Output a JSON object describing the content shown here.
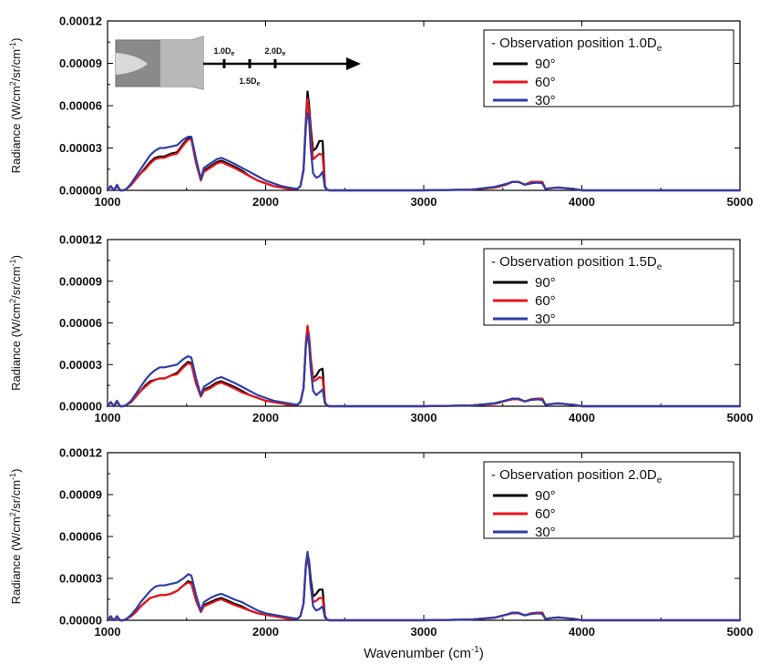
{
  "chart_data": {
    "type": "line",
    "x_label": "Wavenumber",
    "x_unit": "(cm",
    "x_unit_sup": "-1",
    "x_unit_close": ")",
    "xlim": [
      1000,
      5000
    ],
    "x_ticks": [
      "1000",
      "2000",
      "3000",
      "4000",
      "5000"
    ],
    "y_label_parts": [
      "Radiance (W/cm",
      "2",
      "/sr/cm",
      "-1",
      ")"
    ],
    "ylim": [
      0,
      0.00012
    ],
    "y_ticks": [
      "0.00000",
      "0.00003",
      "0.00006",
      "0.00009",
      "0.00012"
    ],
    "legend_labels": [
      "90°",
      "60°",
      "30°"
    ],
    "series_colors": {
      "90°": "#000000",
      "60°": "#e8141c",
      "30°": "#2f3ea8"
    },
    "x": [
      1000,
      1020,
      1040,
      1060,
      1080,
      1100,
      1120,
      1150,
      1180,
      1210,
      1240,
      1270,
      1300,
      1330,
      1360,
      1400,
      1440,
      1480,
      1510,
      1530,
      1560,
      1590,
      1610,
      1650,
      1690,
      1720,
      1760,
      1800,
      1850,
      1900,
      1950,
      2000,
      2050,
      2100,
      2150,
      2200,
      2220,
      2240,
      2255,
      2265,
      2275,
      2285,
      2300,
      2320,
      2340,
      2360,
      2375,
      2385,
      2400,
      2500,
      3000,
      3300,
      3450,
      3520,
      3560,
      3600,
      3640,
      3680,
      3720,
      3750,
      3770,
      3800,
      3850,
      3900,
      3950,
      4000,
      4100,
      5000
    ],
    "insets": [
      {
        "legend_title": "- Observation position 1.0D",
        "legend_sub": "e",
        "nozzle_labels": [
          {
            "text": "1.0D",
            "sub": "e"
          },
          {
            "text": "1.5D",
            "sub": "e"
          },
          {
            "text": "2.0D",
            "sub": "e"
          }
        ],
        "series": [
          {
            "name": "90°",
            "values": [
              0,
              3e-06,
              0,
              3e-06,
              0,
              0,
              1e-06,
              4e-06,
              8e-06,
              1.2e-05,
              1.6e-05,
              2e-05,
              2.3e-05,
              2.4e-05,
              2.4e-05,
              2.6e-05,
              2.7e-05,
              3.3e-05,
              3.7e-05,
              3.7e-05,
              2e-05,
              8e-06,
              1.4e-05,
              1.7e-05,
              2e-05,
              2.1e-05,
              1.9e-05,
              1.7e-05,
              1.4e-05,
              1e-05,
              7e-06,
              5e-06,
              3e-06,
              2e-06,
              1e-06,
              1e-06,
              3e-06,
              1.5e-05,
              5e-05,
              7e-05,
              6e-05,
              4.5e-05,
              2.8e-05,
              3e-05,
              3.5e-05,
              3.5e-05,
              3e-06,
              1e-06,
              0,
              0,
              0,
              5e-07,
              2e-06,
              4e-06,
              6e-06,
              6e-06,
              4e-06,
              6e-06,
              6e-06,
              6e-06,
              1e-06,
              1.5e-06,
              2e-06,
              1.5e-06,
              1e-06,
              0,
              0,
              0
            ]
          },
          {
            "name": "60°",
            "values": [
              0,
              3e-06,
              0,
              3e-06,
              0,
              0,
              1e-06,
              4e-06,
              8e-06,
              1.2e-05,
              1.5e-05,
              1.9e-05,
              2.2e-05,
              2.3e-05,
              2.3e-05,
              2.5e-05,
              2.6e-05,
              3.2e-05,
              3.6e-05,
              3.6e-05,
              1.9e-05,
              7e-06,
              1.3e-05,
              1.6e-05,
              1.9e-05,
              2e-05,
              1.8e-05,
              1.6e-05,
              1.3e-05,
              1e-05,
              7e-06,
              5e-06,
              3e-06,
              2e-06,
              1e-06,
              1e-06,
              3e-06,
              1.4e-05,
              4.8e-05,
              6.5e-05,
              5.5e-05,
              4e-05,
              2.2e-05,
              2.4e-05,
              2.6e-05,
              2.5e-05,
              2e-06,
              1e-06,
              0,
              0,
              0,
              5e-07,
              2e-06,
              4e-06,
              6e-06,
              6e-06,
              4e-06,
              6e-06,
              6e-06,
              6e-06,
              1e-06,
              1.5e-06,
              2e-06,
              1.5e-06,
              1e-06,
              0,
              0,
              0
            ]
          },
          {
            "name": "30°",
            "values": [
              0,
              3e-06,
              0,
              4e-06,
              0,
              0,
              1e-06,
              5e-06,
              1e-05,
              1.5e-05,
              2e-05,
              2.5e-05,
              2.8e-05,
              3e-05,
              3e-05,
              3.1e-05,
              3.2e-05,
              3.6e-05,
              3.8e-05,
              3.8e-05,
              2.2e-05,
              8e-06,
              1.6e-05,
              1.9e-05,
              2.2e-05,
              2.3e-05,
              2.1e-05,
              1.9e-05,
              1.6e-05,
              1.3e-05,
              1e-05,
              7e-06,
              5e-06,
              3e-06,
              2e-06,
              1e-06,
              3e-06,
              1.4e-05,
              4.5e-05,
              5.5e-05,
              5e-05,
              3e-05,
              1.2e-05,
              9e-06,
              1e-05,
              1.3e-05,
              2e-06,
              1e-06,
              0,
              0,
              0,
              5e-07,
              2.5e-06,
              4.5e-06,
              6e-06,
              6e-06,
              4e-06,
              5e-06,
              5.5e-06,
              5e-06,
              1e-06,
              1.5e-06,
              2e-06,
              1.5e-06,
              1e-06,
              0,
              0,
              0
            ]
          }
        ]
      },
      {
        "legend_title": "- Observation position 1.5D",
        "legend_sub": "e",
        "nozzle_labels": [],
        "series": [
          {
            "name": "90°",
            "values": [
              0,
              3e-06,
              0,
              3e-06,
              0,
              0,
              1e-06,
              3e-06,
              7e-06,
              1.1e-05,
              1.5e-05,
              1.8e-05,
              1.9e-05,
              2e-05,
              2e-05,
              2.2e-05,
              2.4e-05,
              2.9e-05,
              3.2e-05,
              3.1e-05,
              1.7e-05,
              7e-06,
              1.2e-05,
              1.4e-05,
              1.7e-05,
              1.8e-05,
              1.6e-05,
              1.4e-05,
              1.1e-05,
              8e-06,
              6e-06,
              4e-06,
              3e-06,
              2e-06,
              1e-06,
              1e-06,
              3e-06,
              1.3e-05,
              4.5e-05,
              5.7e-05,
              5e-05,
              3.5e-05,
              2e-05,
              2.2e-05,
              2.6e-05,
              2.7e-05,
              3e-06,
              1e-06,
              0,
              0,
              0,
              5e-07,
              1.8e-06,
              4e-06,
              5e-06,
              5e-06,
              3.5e-06,
              5e-06,
              5.5e-06,
              5.5e-06,
              1e-06,
              1.5e-06,
              2e-06,
              1.5e-06,
              1e-06,
              0,
              0,
              0
            ]
          },
          {
            "name": "60°",
            "values": [
              0,
              3e-06,
              0,
              3e-06,
              0,
              0,
              1e-06,
              3e-06,
              7e-06,
              1.1e-05,
              1.4e-05,
              1.7e-05,
              1.9e-05,
              2e-05,
              2e-05,
              2.2e-05,
              2.3e-05,
              2.8e-05,
              3.1e-05,
              3e-05,
              1.6e-05,
              7e-06,
              1.1e-05,
              1.3e-05,
              1.6e-05,
              1.7e-05,
              1.5e-05,
              1.3e-05,
              1e-05,
              8e-06,
              6e-06,
              4e-06,
              3e-06,
              2e-06,
              1e-06,
              1e-06,
              3e-06,
              1.3e-05,
              4.6e-05,
              5.8e-05,
              5e-05,
              3.5e-05,
              1.8e-05,
              1.9e-05,
              2.1e-05,
              2e-05,
              2e-06,
              1e-06,
              0,
              0,
              0,
              5e-07,
              1.8e-06,
              4e-06,
              5e-06,
              5e-06,
              3.5e-06,
              5e-06,
              5.5e-06,
              5.5e-06,
              1e-06,
              1.5e-06,
              2e-06,
              1.5e-06,
              1e-06,
              0,
              0,
              0
            ]
          },
          {
            "name": "30°",
            "values": [
              0,
              3e-06,
              0,
              4e-06,
              0,
              0,
              1e-06,
              4e-06,
              9e-06,
              1.4e-05,
              1.9e-05,
              2.3e-05,
              2.6e-05,
              2.8e-05,
              2.8e-05,
              2.9e-05,
              3e-05,
              3.4e-05,
              3.6e-05,
              3.5e-05,
              2e-05,
              8e-06,
              1.4e-05,
              1.7e-05,
              2e-05,
              2.1e-05,
              1.9e-05,
              1.7e-05,
              1.4e-05,
              1.1e-05,
              8e-06,
              6e-06,
              4e-06,
              3e-06,
              2e-06,
              1e-06,
              3e-06,
              1.3e-05,
              4.3e-05,
              5.2e-05,
              4.5e-05,
              2.8e-05,
              1.1e-05,
              8e-06,
              1e-05,
              1.2e-05,
              2e-06,
              1e-06,
              0,
              0,
              0,
              5e-07,
              2.2e-06,
              4.2e-06,
              5.5e-06,
              5.5e-06,
              3.5e-06,
              4.5e-06,
              5e-06,
              4.5e-06,
              1e-06,
              1.5e-06,
              2e-06,
              1.5e-06,
              1e-06,
              0,
              0,
              0
            ]
          }
        ]
      },
      {
        "legend_title": "- Observation position 2.0D",
        "legend_sub": "e",
        "nozzle_labels": [],
        "series": [
          {
            "name": "90°",
            "values": [
              0,
              2e-06,
              0,
              2e-06,
              0,
              0,
              1e-06,
              3e-06,
              6e-06,
              1e-05,
              1.3e-05,
              1.6e-05,
              1.7e-05,
              1.8e-05,
              1.8e-05,
              1.9e-05,
              2.1e-05,
              2.5e-05,
              2.8e-05,
              2.7e-05,
              1.4e-05,
              6e-06,
              1.1e-05,
              1.3e-05,
              1.5e-05,
              1.6e-05,
              1.4e-05,
              1.2e-05,
              1e-05,
              7e-06,
              5e-06,
              4e-06,
              3e-06,
              2e-06,
              1e-06,
              1e-06,
              3e-06,
              1.2e-05,
              4e-05,
              4.8e-05,
              4.2e-05,
              3e-05,
              1.7e-05,
              1.9e-05,
              2.2e-05,
              2.2e-05,
              3e-06,
              1e-06,
              0,
              0,
              0,
              5e-07,
              1.8e-06,
              4e-06,
              5e-06,
              5e-06,
              3.5e-06,
              5e-06,
              5.5e-06,
              5.5e-06,
              1e-06,
              1.5e-06,
              2e-06,
              1.5e-06,
              1e-06,
              0,
              0,
              0
            ]
          },
          {
            "name": "60°",
            "values": [
              0,
              2e-06,
              0,
              2e-06,
              0,
              0,
              1e-06,
              3e-06,
              6e-06,
              1e-05,
              1.3e-05,
              1.6e-05,
              1.7e-05,
              1.8e-05,
              1.8e-05,
              1.9e-05,
              2.1e-05,
              2.5e-05,
              2.7e-05,
              2.6e-05,
              1.4e-05,
              6e-06,
              1e-05,
              1.2e-05,
              1.4e-05,
              1.5e-05,
              1.3e-05,
              1.1e-05,
              9e-06,
              7e-06,
              5e-06,
              4e-06,
              3e-06,
              2e-06,
              1e-06,
              1e-06,
              3e-06,
              1.2e-05,
              3.8e-05,
              4.4e-05,
              3.8e-05,
              2.5e-05,
              1.3e-05,
              1.4e-05,
              1.6e-05,
              1.6e-05,
              2e-06,
              1e-06,
              0,
              0,
              0,
              5e-07,
              1.8e-06,
              4e-06,
              5e-06,
              5e-06,
              3.5e-06,
              5e-06,
              5.5e-06,
              5.5e-06,
              1e-06,
              1.5e-06,
              2e-06,
              1.5e-06,
              1e-06,
              0,
              0,
              0
            ]
          },
          {
            "name": "30°",
            "values": [
              0,
              3e-06,
              0,
              3e-06,
              0,
              0,
              1e-06,
              4e-06,
              8e-06,
              1.3e-05,
              1.7e-05,
              2.1e-05,
              2.4e-05,
              2.5e-05,
              2.5e-05,
              2.6e-05,
              2.7e-05,
              3e-05,
              3.3e-05,
              3.2e-05,
              1.8e-05,
              7e-06,
              1.3e-05,
              1.6e-05,
              1.8e-05,
              1.9e-05,
              1.7e-05,
              1.5e-05,
              1.3e-05,
              1e-05,
              7e-06,
              5e-06,
              4e-06,
              3e-06,
              2e-06,
              1e-06,
              3e-06,
              1.2e-05,
              4e-05,
              4.9e-05,
              4e-05,
              2.5e-05,
              1e-05,
              7e-06,
              8e-06,
              1e-05,
              2e-06,
              1e-06,
              0,
              0,
              0,
              5e-07,
              2e-06,
              4e-06,
              5.5e-06,
              5.5e-06,
              3.5e-06,
              4.5e-06,
              5e-06,
              4.5e-06,
              1e-06,
              1.5e-06,
              2e-06,
              1.5e-06,
              1e-06,
              0,
              0,
              0
            ]
          }
        ]
      }
    ]
  }
}
